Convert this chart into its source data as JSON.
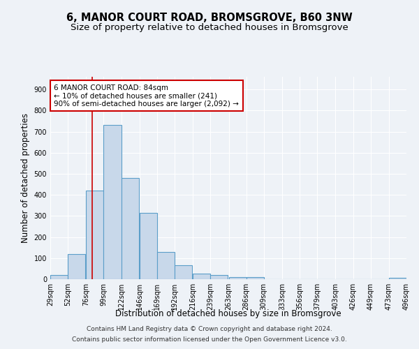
{
  "title": "6, MANOR COURT ROAD, BROMSGROVE, B60 3NW",
  "subtitle": "Size of property relative to detached houses in Bromsgrove",
  "xlabel": "Distribution of detached houses by size in Bromsgrove",
  "ylabel": "Number of detached properties",
  "bin_edges": [
    29,
    52,
    76,
    99,
    122,
    146,
    169,
    192,
    216,
    239,
    263,
    286,
    309,
    333,
    356,
    379,
    403,
    426,
    449,
    473,
    496
  ],
  "bar_heights": [
    20,
    120,
    420,
    730,
    480,
    315,
    130,
    65,
    25,
    20,
    10,
    10,
    0,
    0,
    0,
    0,
    0,
    0,
    0,
    8
  ],
  "bar_color": "#c8d8ea",
  "bar_edge_color": "#5b9ec9",
  "bar_edge_width": 0.8,
  "red_line_x": 84,
  "red_line_color": "#cc0000",
  "annotation_text": "6 MANOR COURT ROAD: 84sqm\n← 10% of detached houses are smaller (241)\n90% of semi-detached houses are larger (2,092) →",
  "annotation_box_color": "#ffffff",
  "annotation_box_edge": "#cc0000",
  "ylim": [
    0,
    960
  ],
  "yticks": [
    0,
    100,
    200,
    300,
    400,
    500,
    600,
    700,
    800,
    900
  ],
  "tick_labels": [
    "29sqm",
    "52sqm",
    "76sqm",
    "99sqm",
    "122sqm",
    "146sqm",
    "169sqm",
    "192sqm",
    "216sqm",
    "239sqm",
    "263sqm",
    "286sqm",
    "309sqm",
    "333sqm",
    "356sqm",
    "379sqm",
    "403sqm",
    "426sqm",
    "449sqm",
    "473sqm",
    "496sqm"
  ],
  "footer_line1": "Contains HM Land Registry data © Crown copyright and database right 2024.",
  "footer_line2": "Contains public sector information licensed under the Open Government Licence v3.0.",
  "bg_color": "#eef2f7",
  "grid_color": "#ffffff",
  "title_fontsize": 10.5,
  "subtitle_fontsize": 9.5,
  "axis_label_fontsize": 8.5,
  "tick_fontsize": 7,
  "annotation_fontsize": 7.5,
  "footer_fontsize": 6.5
}
